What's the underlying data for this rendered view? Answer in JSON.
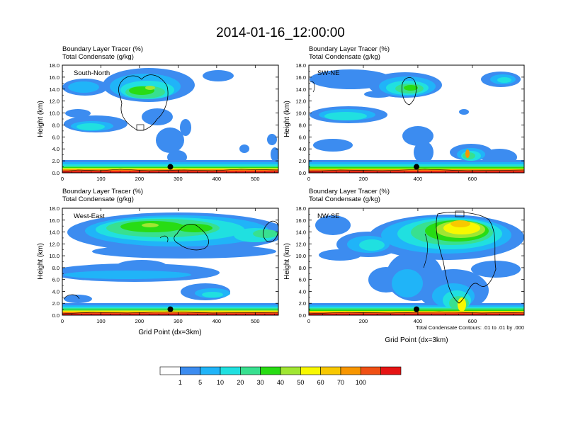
{
  "title": "2014-01-16_12:00:00",
  "panel_header": {
    "line1": "Boundary Layer Tracer   (%)",
    "line2": "Total Condensate   (g/kg)"
  },
  "axis": {
    "ylabel": "Height (km)",
    "xlabel": "Grid Point (dx=3km)",
    "yticks": [
      "0.0",
      "2.0",
      "4.0",
      "6.0",
      "8.0",
      "10.0",
      "12.0",
      "14.0",
      "16.0",
      "18.0"
    ]
  },
  "contour_note": "Total Condensate Contours: .01 to .01 by .000",
  "colorbar": {
    "labels": [
      "1",
      "5",
      "10",
      "20",
      "30",
      "40",
      "50",
      "60",
      "70",
      "100"
    ],
    "colors": [
      "#ffffff",
      "#3c8cf0",
      "#20b4f8",
      "#20e0e0",
      "#38e090",
      "#28dc14",
      "#a0e632",
      "#f8f800",
      "#f8c800",
      "#f89600",
      "#f05014",
      "#e61414"
    ]
  },
  "chart_data": [
    {
      "type": "heatmap",
      "name": "South-North",
      "xlim": [
        0,
        560
      ],
      "ylim": [
        0,
        18
      ],
      "xticks": [
        "0",
        "100",
        "200",
        "300",
        "400",
        "500"
      ],
      "marker": {
        "x": 280,
        "y": 1.0
      }
    },
    {
      "type": "heatmap",
      "name": "SW-NE",
      "xlim": [
        0,
        790
      ],
      "ylim": [
        0,
        18
      ],
      "xticks": [
        "0",
        "200",
        "400",
        "600"
      ],
      "marker": {
        "x": 395,
        "y": 1.0
      }
    },
    {
      "type": "heatmap",
      "name": "West-East",
      "xlim": [
        0,
        560
      ],
      "ylim": [
        0,
        18
      ],
      "xticks": [
        "0",
        "100",
        "200",
        "300",
        "400",
        "500"
      ],
      "marker": {
        "x": 280,
        "y": 1.0
      }
    },
    {
      "type": "heatmap",
      "name": "NW-SE",
      "xlim": [
        0,
        790
      ],
      "ylim": [
        0,
        18
      ],
      "xticks": [
        "0",
        "200",
        "400",
        "600"
      ],
      "marker": {
        "x": 395,
        "y": 1.0
      }
    }
  ]
}
